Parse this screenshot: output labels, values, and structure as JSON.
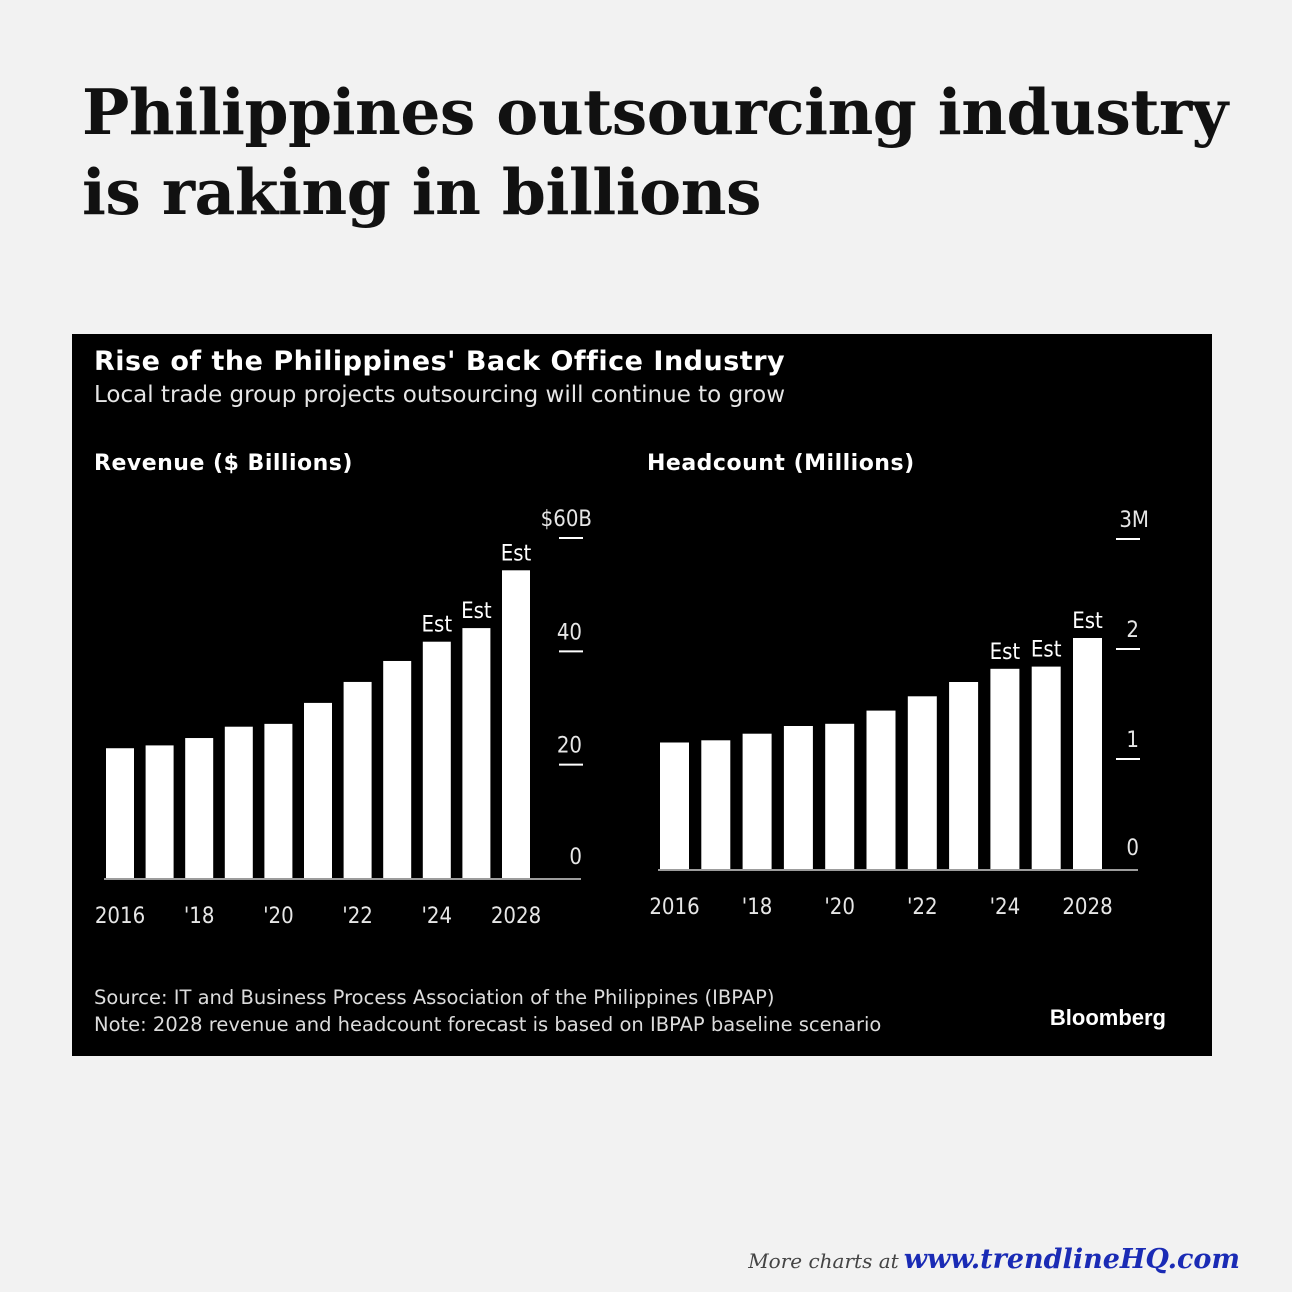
{
  "headline": "Philippines outsourcing industry is raking in billions",
  "panel": {
    "title": "Rise of the Philippines' Back Office Industry",
    "subtitle": "Local trade group projects outsourcing will continue to grow",
    "source": "Source: IT and Business Process Association of the Philippines (IBPAP)",
    "note": "Note: 2028 revenue and headcount forecast is based on IBPAP baseline scenario",
    "brand": "Bloomberg"
  },
  "footer": {
    "lead": "More charts at",
    "url": "www.trendlineHQ.com"
  },
  "colors": {
    "background": "#f2f2f2",
    "panel": "#000000",
    "bars": "#ffffff",
    "link": "#1a2bb5"
  },
  "chart_data": [
    {
      "type": "bar",
      "title": "Revenue ($ Billions)",
      "categories": [
        "2016",
        "2017",
        "2018",
        "2019",
        "2020",
        "2021",
        "2022",
        "2023",
        "2024",
        "2025",
        "2028"
      ],
      "x_tick_labels": [
        "2016",
        "'18",
        "'20",
        "'22",
        "'24",
        "2028"
      ],
      "x_tick_categories": [
        "2016",
        "2018",
        "2020",
        "2022",
        "2024",
        "2028"
      ],
      "values": [
        22.9,
        23.4,
        24.7,
        26.7,
        27.2,
        30.9,
        34.6,
        38.3,
        41.7,
        44.1,
        54.3
      ],
      "annotations": [
        {
          "category": "2024",
          "text": "Est"
        },
        {
          "category": "2025",
          "text": "Est"
        },
        {
          "category": "2028",
          "text": "Est"
        }
      ],
      "y_ticks": [
        0,
        20,
        40,
        60
      ],
      "y_tick_labels": [
        "0",
        "20",
        "40",
        "$60B"
      ],
      "ylim": [
        0,
        60
      ],
      "y_axis_side": "right",
      "grid": false
    },
    {
      "type": "bar",
      "title": "Headcount (Millions)",
      "categories": [
        "2016",
        "2017",
        "2018",
        "2019",
        "2020",
        "2021",
        "2022",
        "2023",
        "2024",
        "2025",
        "2028"
      ],
      "x_tick_labels": [
        "2016",
        "'18",
        "'20",
        "'22",
        "'24",
        "2028"
      ],
      "x_tick_categories": [
        "2016",
        "2018",
        "2020",
        "2022",
        "2024",
        "2028"
      ],
      "values": [
        1.15,
        1.17,
        1.23,
        1.3,
        1.32,
        1.44,
        1.57,
        1.7,
        1.82,
        1.84,
        2.1
      ],
      "annotations": [
        {
          "category": "2024",
          "text": "Est"
        },
        {
          "category": "2025",
          "text": "Est"
        },
        {
          "category": "2028",
          "text": "Est"
        }
      ],
      "y_ticks": [
        0,
        1,
        2,
        3
      ],
      "y_tick_labels": [
        "0",
        "1",
        "2",
        "3M"
      ],
      "ylim": [
        0,
        3
      ],
      "y_axis_side": "right",
      "grid": false
    }
  ]
}
